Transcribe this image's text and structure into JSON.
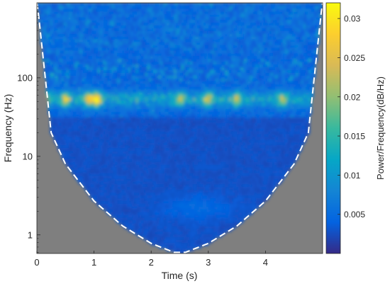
{
  "chart_data": {
    "type": "heatmap",
    "title": "",
    "xlabel": "Time (s)",
    "ylabel": "Frequency (Hz)",
    "xlim": [
      0,
      5
    ],
    "ylim": [
      0.58,
      900
    ],
    "y_scale": "log",
    "x_ticks": [
      0,
      1,
      2,
      3,
      4
    ],
    "x_tick_labels": [
      "0",
      "1",
      "2",
      "3",
      "4"
    ],
    "y_ticks": [
      1,
      10,
      100
    ],
    "y_tick_labels": [
      "1",
      "10",
      "100"
    ],
    "colorbar": {
      "label": "Power/Frequency(dB/Hz)",
      "range": [
        0,
        0.032
      ],
      "ticks": [
        0.005,
        0.01,
        0.015,
        0.02,
        0.025,
        0.03
      ],
      "tick_labels": [
        "0.005",
        "0.01",
        "0.015",
        "0.02",
        "0.025",
        "0.03"
      ],
      "colormap": [
        "#352a87",
        "#0363e1",
        "#1485d4",
        "#06a7c6",
        "#38b99e",
        "#92bf73",
        "#d9ba56",
        "#fcce2e",
        "#f9fb0e"
      ]
    },
    "dominant_band_hz": [
      45,
      65
    ],
    "cone_of_influence": {
      "line_style": "dashed",
      "line_color": "#ffffff",
      "outside_color": "#7f7f7f",
      "boundary_hz": [
        [
          0.0,
          1000
        ],
        [
          0.25,
          20
        ],
        [
          0.5,
          8
        ],
        [
          1.0,
          2.7
        ],
        [
          1.5,
          1.3
        ],
        [
          2.0,
          0.78
        ],
        [
          2.4,
          0.6
        ],
        [
          2.6,
          0.6
        ],
        [
          3.0,
          0.78
        ],
        [
          3.5,
          1.3
        ],
        [
          4.0,
          2.7
        ],
        [
          4.5,
          8
        ],
        [
          4.75,
          20
        ],
        [
          5.0,
          1000
        ]
      ]
    },
    "grid": false,
    "legend": "none"
  }
}
